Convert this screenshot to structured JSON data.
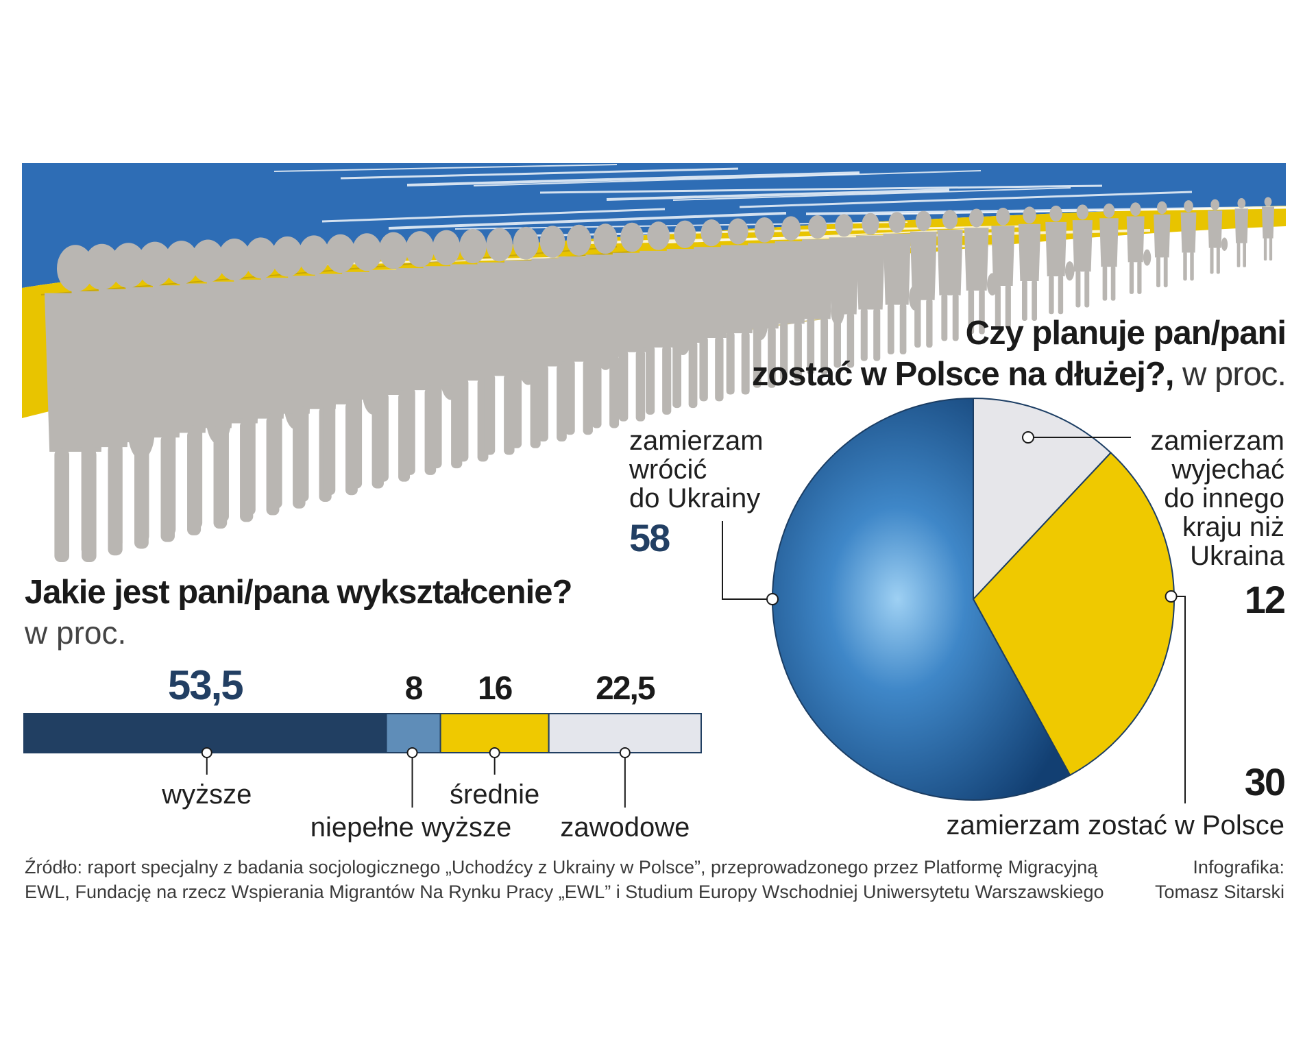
{
  "banner": {
    "colors": {
      "blue": "#2e6db5",
      "yellow": "#e8c400",
      "crowd": "#b9b6b2"
    }
  },
  "chart_data": [
    {
      "type": "bar",
      "orientation": "stacked-horizontal",
      "title": "Jakie jest pani/pana wykształcenie?",
      "subtitle": "w proc.",
      "categories": [
        "wyższe",
        "niepełne wyższe",
        "średnie",
        "zawodowe"
      ],
      "value_labels": [
        "53,5",
        "8",
        "16",
        "22,5"
      ],
      "values": [
        53.5,
        8,
        16,
        22.5
      ],
      "colors": [
        "#213f62",
        "#5f8db8",
        "#efc900",
        "#e4e6ec"
      ]
    },
    {
      "type": "pie",
      "title_bold_line1": "Czy planuje pan/pani",
      "title_bold_line2": "zostać w Polsce na dłużej?,",
      "title_unit": " w proc.",
      "slices": [
        {
          "label_lines": [
            "zamierzam",
            "wrócić",
            "do Ukrainy"
          ],
          "value": 58,
          "value_label": "58",
          "color": "#1f5d98",
          "value_color": "#223f63"
        },
        {
          "label_lines": [
            "zamierzam",
            "wyjechać",
            "do innego",
            "kraju niż",
            "Ukraina"
          ],
          "value": 12,
          "value_label": "12",
          "color": "#e6e6ea",
          "value_color": "#1a1a1a"
        },
        {
          "label_lines": [
            "zamierzam zostać w Polsce"
          ],
          "value": 30,
          "value_label": "30",
          "color": "#efc900",
          "value_color": "#1a1a1a"
        }
      ]
    }
  ],
  "footer": {
    "source_line1": "Źródło: raport specjalny z badania socjologicznego „Uchodźcy z Ukrainy w Polsce”, przeprowadzonego przez Platformę Migracyjną",
    "source_line2": "EWL, Fundację na rzecz Wspierania Migrantów Na Rynku Pracy „EWL” i Studium Europy Wschodniej Uniwersytetu Warszawskiego",
    "credit_line1": "Infografika:",
    "credit_line2": "Tomasz Sitarski"
  }
}
